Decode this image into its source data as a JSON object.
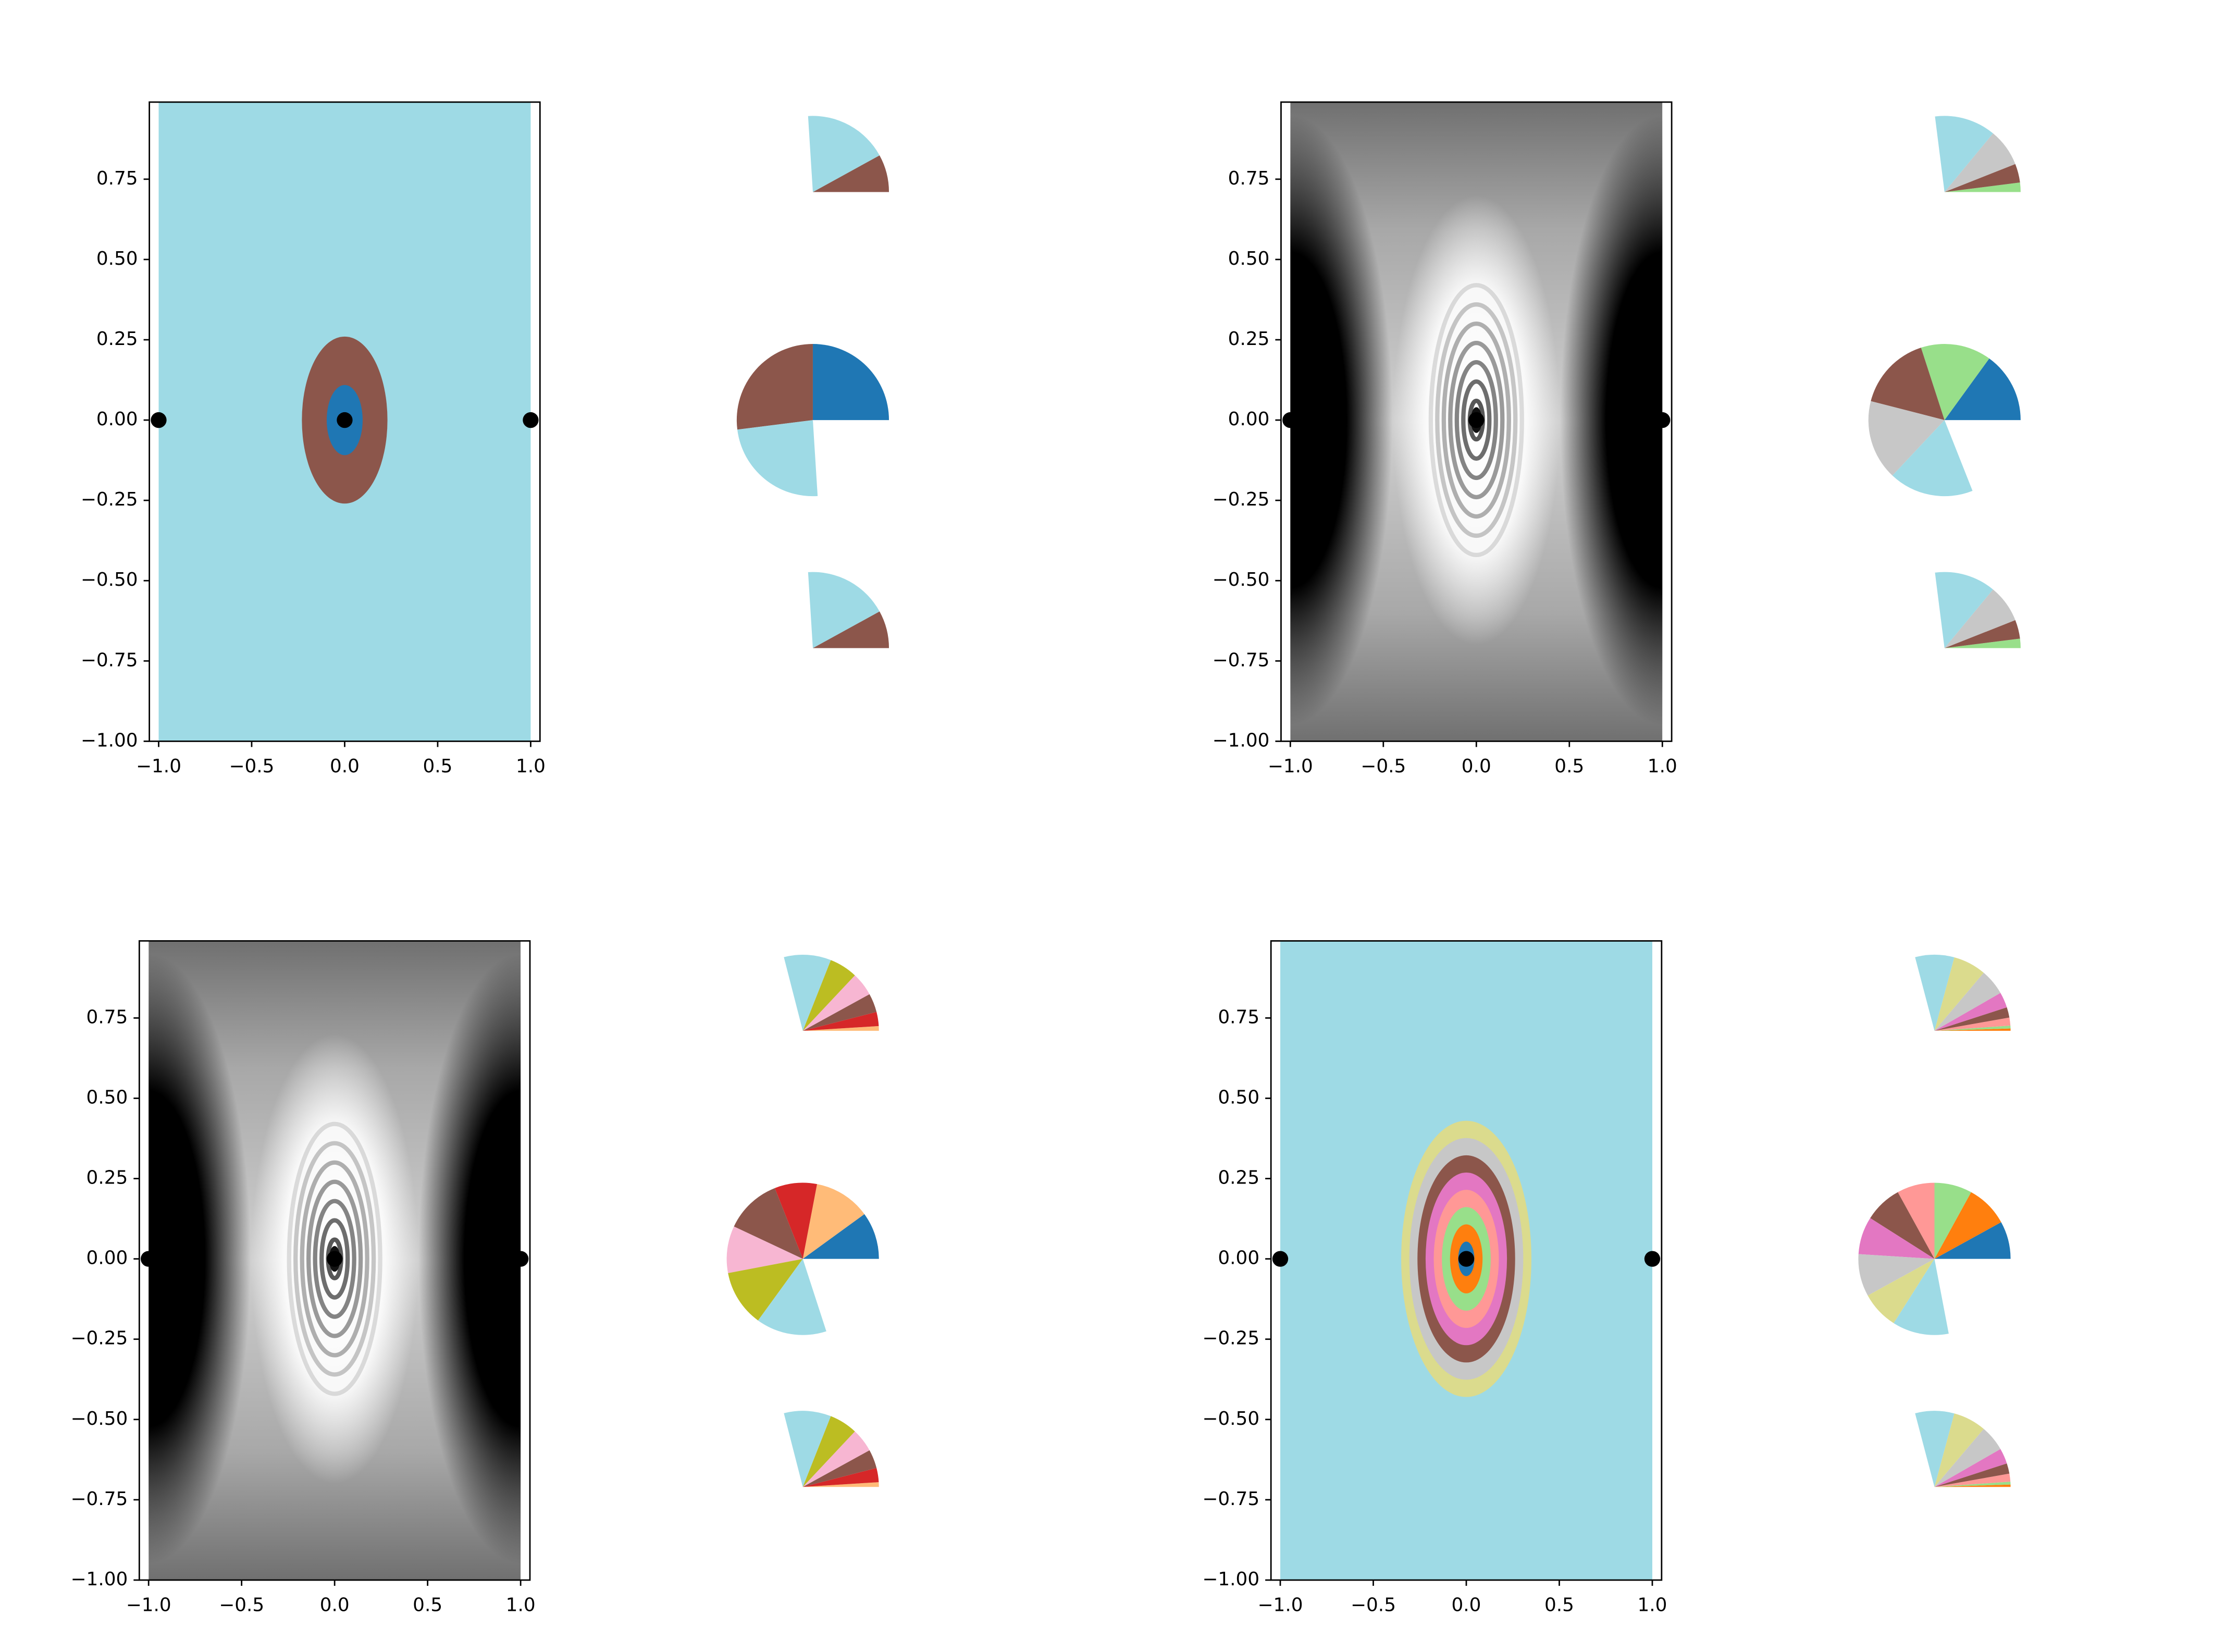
{
  "chart_data": [
    {
      "type": "image",
      "colormap": "tab20",
      "region_colors": [
        "#9edae5",
        "#8c564b",
        "#1f77b4"
      ],
      "xlim": [
        -1.05,
        1.05
      ],
      "ylim": [
        -1,
        0.99
      ],
      "xticks": [
        {
          "value": -1,
          "label": "−1.0"
        },
        {
          "value": -0.5,
          "label": "−0.5"
        },
        {
          "value": 0,
          "label": "0.0"
        },
        {
          "value": 0.5,
          "label": "0.5"
        },
        {
          "value": 1,
          "label": "1.0"
        }
      ],
      "yticks": [
        {
          "value": -1,
          "label": "−1.00"
        },
        {
          "value": -0.75,
          "label": "−0.75"
        },
        {
          "value": -0.5,
          "label": "−0.50"
        },
        {
          "value": -0.25,
          "label": "−0.25"
        },
        {
          "value": 0,
          "label": "0.00"
        },
        {
          "value": 0.25,
          "label": "0.25"
        },
        {
          "value": 0.5,
          "label": "0.50"
        },
        {
          "value": 0.75,
          "label": "0.75"
        }
      ],
      "points": {
        "x": [
          -1,
          0,
          1
        ],
        "y": [
          0,
          0,
          0
        ],
        "color": "#000000"
      },
      "pies": [
        {
          "values": [
            0.08,
            0.18
          ],
          "colors": [
            "#8c564b",
            "#9edae5"
          ]
        },
        {
          "values": [
            0.25,
            0.27,
            0.24
          ],
          "colors": [
            "#1f77b4",
            "#8c564b",
            "#9edae5"
          ]
        },
        {
          "values": [
            0.08,
            0.18
          ],
          "colors": [
            "#8c564b",
            "#9edae5"
          ]
        }
      ]
    },
    {
      "type": "image",
      "colormap": "gray",
      "xlim": [
        -1.05,
        1.05
      ],
      "ylim": [
        -1,
        0.99
      ],
      "xticks": [
        {
          "value": -1,
          "label": "−1.0"
        },
        {
          "value": -0.5,
          "label": "−0.5"
        },
        {
          "value": 0,
          "label": "0.0"
        },
        {
          "value": 0.5,
          "label": "0.5"
        },
        {
          "value": 1,
          "label": "1.0"
        }
      ],
      "yticks": [
        {
          "value": -1,
          "label": "−1.00"
        },
        {
          "value": -0.75,
          "label": "−0.75"
        },
        {
          "value": -0.5,
          "label": "−0.50"
        },
        {
          "value": -0.25,
          "label": "−0.25"
        },
        {
          "value": 0,
          "label": "0.00"
        },
        {
          "value": 0.25,
          "label": "0.25"
        },
        {
          "value": 0.5,
          "label": "0.50"
        },
        {
          "value": 0.75,
          "label": "0.75"
        }
      ],
      "points": {
        "x": [
          -1,
          0,
          1
        ],
        "y": [
          0,
          0,
          0
        ],
        "color": "#000000"
      },
      "pies": [
        {
          "values": [
            0.02,
            0.04,
            0.08,
            0.13
          ],
          "colors": [
            "#98df8a",
            "#8c564b",
            "#c7c7c7",
            "#9edae5"
          ]
        },
        {
          "values": [
            0.15,
            0.15,
            0.16,
            0.17,
            0.18
          ],
          "colors": [
            "#1f77b4",
            "#98df8a",
            "#8c564b",
            "#c7c7c7",
            "#9edae5"
          ]
        },
        {
          "values": [
            0.02,
            0.04,
            0.08,
            0.13
          ],
          "colors": [
            "#98df8a",
            "#8c564b",
            "#c7c7c7",
            "#9edae5"
          ]
        }
      ]
    },
    {
      "type": "image",
      "colormap": "gray",
      "xlim": [
        -1.05,
        1.05
      ],
      "ylim": [
        -1,
        0.99
      ],
      "xticks": [
        {
          "value": -1,
          "label": "−1.0"
        },
        {
          "value": -0.5,
          "label": "−0.5"
        },
        {
          "value": 0,
          "label": "0.0"
        },
        {
          "value": 0.5,
          "label": "0.5"
        },
        {
          "value": 1,
          "label": "1.0"
        }
      ],
      "yticks": [
        {
          "value": -1,
          "label": "−1.00"
        },
        {
          "value": -0.75,
          "label": "−0.75"
        },
        {
          "value": -0.5,
          "label": "−0.50"
        },
        {
          "value": -0.25,
          "label": "−0.25"
        },
        {
          "value": 0,
          "label": "0.00"
        },
        {
          "value": 0.25,
          "label": "0.25"
        },
        {
          "value": 0.5,
          "label": "0.50"
        },
        {
          "value": 0.75,
          "label": "0.75"
        }
      ],
      "points": {
        "x": [
          -1,
          0,
          1
        ],
        "y": [
          0,
          0,
          0
        ],
        "color": "#000000"
      },
      "pies": [
        {
          "values": [
            0.01,
            0.03,
            0.04,
            0.05,
            0.06,
            0.1
          ],
          "colors": [
            "#ffbb78",
            "#d62728",
            "#8c564b",
            "#f7b6d2",
            "#bcbd22",
            "#9edae5"
          ]
        },
        {
          "values": [
            0.1,
            0.12,
            0.09,
            0.12,
            0.1,
            0.12,
            0.15
          ],
          "colors": [
            "#1f77b4",
            "#ffbb78",
            "#d62728",
            "#8c564b",
            "#f7b6d2",
            "#bcbd22",
            "#9edae5"
          ]
        },
        {
          "values": [
            0.01,
            0.03,
            0.04,
            0.05,
            0.06,
            0.1
          ],
          "colors": [
            "#ffbb78",
            "#d62728",
            "#8c564b",
            "#f7b6d2",
            "#bcbd22",
            "#9edae5"
          ]
        }
      ]
    },
    {
      "type": "image",
      "colormap": "tab20",
      "region_colors": [
        "#9edae5",
        "#dbdb8d",
        "#c7c7c7",
        "#8c564b",
        "#e377c2",
        "#ff9896",
        "#98df8a",
        "#ff7f0e",
        "#1f77b4"
      ],
      "xlim": [
        -1.05,
        1.05
      ],
      "ylim": [
        -1,
        0.99
      ],
      "xticks": [
        {
          "value": -1,
          "label": "−1.0"
        },
        {
          "value": -0.5,
          "label": "−0.5"
        },
        {
          "value": 0,
          "label": "0.0"
        },
        {
          "value": 0.5,
          "label": "0.5"
        },
        {
          "value": 1,
          "label": "1.0"
        }
      ],
      "yticks": [
        {
          "value": -1,
          "label": "−1.00"
        },
        {
          "value": -0.75,
          "label": "−0.75"
        },
        {
          "value": -0.5,
          "label": "−0.50"
        },
        {
          "value": -0.25,
          "label": "−0.25"
        },
        {
          "value": 0,
          "label": "0.00"
        },
        {
          "value": 0.25,
          "label": "0.25"
        },
        {
          "value": 0.5,
          "label": "0.50"
        },
        {
          "value": 0.75,
          "label": "0.75"
        }
      ],
      "points": {
        "x": [
          -1,
          0,
          1
        ],
        "y": [
          0,
          0,
          0
        ],
        "color": "#000000"
      },
      "pies": [
        {
          "values": [
            0.005,
            0.006,
            0.017,
            0.022,
            0.033,
            0.055,
            0.07,
            0.083
          ],
          "colors": [
            "#ff7f0e",
            "#98df8a",
            "#ff9896",
            "#8c564b",
            "#e377c2",
            "#c7c7c7",
            "#dbdb8d",
            "#9edae5"
          ]
        },
        {
          "values": [
            0.08,
            0.09,
            0.08,
            0.08,
            0.08,
            0.08,
            0.09,
            0.08,
            0.12
          ],
          "colors": [
            "#1f77b4",
            "#ff7f0e",
            "#98df8a",
            "#ff9896",
            "#8c564b",
            "#e377c2",
            "#c7c7c7",
            "#dbdb8d",
            "#9edae5"
          ]
        },
        {
          "values": [
            0.005,
            0.006,
            0.017,
            0.022,
            0.033,
            0.055,
            0.07,
            0.083
          ],
          "colors": [
            "#ff7f0e",
            "#98df8a",
            "#ff9896",
            "#8c564b",
            "#e377c2",
            "#c7c7c7",
            "#dbdb8d",
            "#9edae5"
          ]
        }
      ]
    }
  ]
}
